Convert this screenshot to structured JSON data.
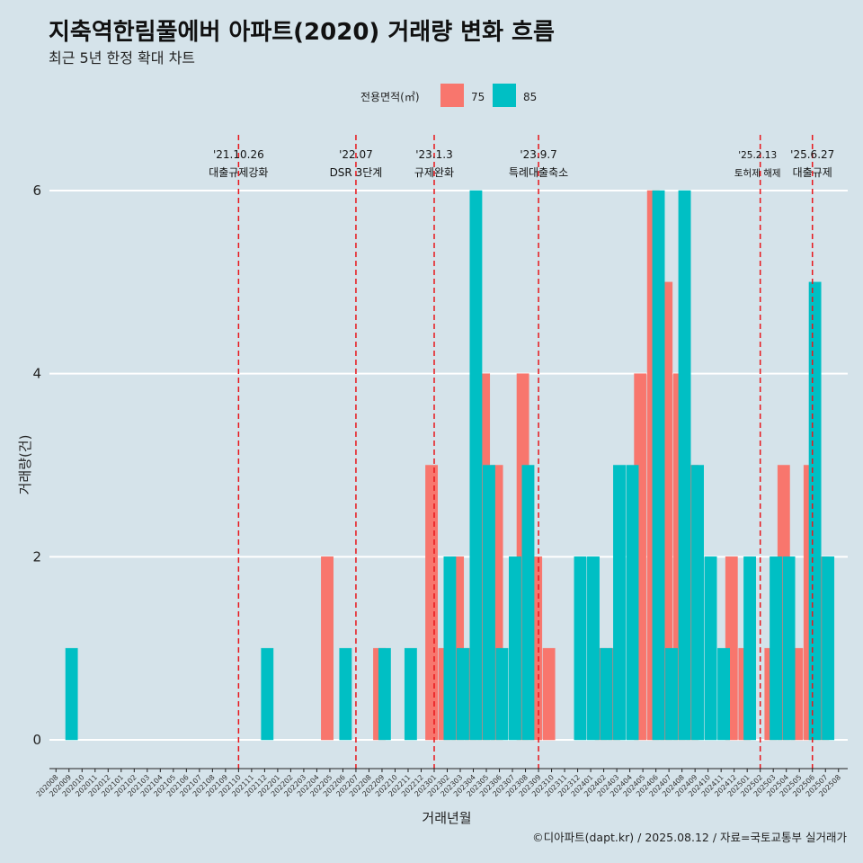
{
  "title": "지축역한림풀에버 아파트(2020) 거래량 변화 흐름",
  "subtitle": "최근 5년 한정 확대 차트",
  "caption": "©디아파트(dapt.kr) / 2025.08.12 / 자료=국토교통부 실거래가",
  "colors": {
    "background": "#d5e3ea",
    "s75": "#f8766d",
    "s85": "#00bfc4",
    "event_line": "#e8161b",
    "grid": "#ffffff"
  },
  "chart_data": {
    "type": "bar",
    "xlabel": "거래년월",
    "ylabel": "거래량(건)",
    "ylim": [
      0,
      6
    ],
    "yticks": [
      0,
      2,
      4,
      6
    ],
    "legend": {
      "title": "전용면적(㎡)",
      "position": "top"
    },
    "categories": [
      "202008",
      "202009",
      "202010",
      "202011",
      "202012",
      "202101",
      "202102",
      "202103",
      "202104",
      "202105",
      "202106",
      "202107",
      "202108",
      "202109",
      "202110",
      "202111",
      "202112",
      "202201",
      "202202",
      "202203",
      "202204",
      "202205",
      "202206",
      "202207",
      "202208",
      "202209",
      "202210",
      "202211",
      "202212",
      "202301",
      "202302",
      "202303",
      "202304",
      "202305",
      "202306",
      "202307",
      "202308",
      "202309",
      "202310",
      "202311",
      "202312",
      "202401",
      "202402",
      "202403",
      "202404",
      "202405",
      "202406",
      "202407",
      "202408",
      "202409",
      "202410",
      "202411",
      "202412",
      "202501",
      "202502",
      "202503",
      "202504",
      "202505",
      "202506",
      "202507",
      "202508"
    ],
    "series": [
      {
        "name": "75",
        "values": [
          0,
          0,
          0,
          0,
          0,
          0,
          0,
          0,
          0,
          0,
          0,
          0,
          0,
          0,
          0,
          0,
          0,
          0,
          0,
          0,
          0,
          2,
          0,
          0,
          0,
          1,
          0,
          0,
          0,
          3,
          1,
          2,
          1,
          4,
          3,
          0,
          4,
          2,
          1,
          0,
          0,
          0,
          1,
          1,
          0,
          4,
          6,
          5,
          4,
          3,
          0,
          0,
          2,
          1,
          0,
          1,
          3,
          1,
          3,
          2,
          0
        ]
      },
      {
        "name": "85",
        "values": [
          0,
          1,
          0,
          0,
          0,
          0,
          0,
          0,
          0,
          0,
          0,
          0,
          0,
          0,
          0,
          0,
          1,
          0,
          0,
          0,
          0,
          0,
          1,
          0,
          0,
          1,
          0,
          1,
          0,
          0,
          2,
          1,
          6,
          3,
          1,
          2,
          3,
          0,
          0,
          0,
          2,
          2,
          1,
          3,
          3,
          0,
          6,
          1,
          6,
          3,
          2,
          1,
          0,
          2,
          0,
          2,
          2,
          0,
          5,
          2,
          0
        ]
      }
    ],
    "events": [
      {
        "date": "'21.10.26",
        "label": "대출규제강화",
        "x": "202110"
      },
      {
        "date": "'22.07",
        "label": "DSR 3단계",
        "x": "202207"
      },
      {
        "date": "'23.1.3",
        "label": "규제완화",
        "x": "202301"
      },
      {
        "date": "'23.9.7",
        "label": "특례대출축소",
        "x": "202309"
      },
      {
        "date": "'25.2.13",
        "label": "토허제 해제",
        "x": "202502"
      },
      {
        "date": "'25.6.27",
        "label": "대출규제",
        "x": "202506"
      }
    ]
  }
}
